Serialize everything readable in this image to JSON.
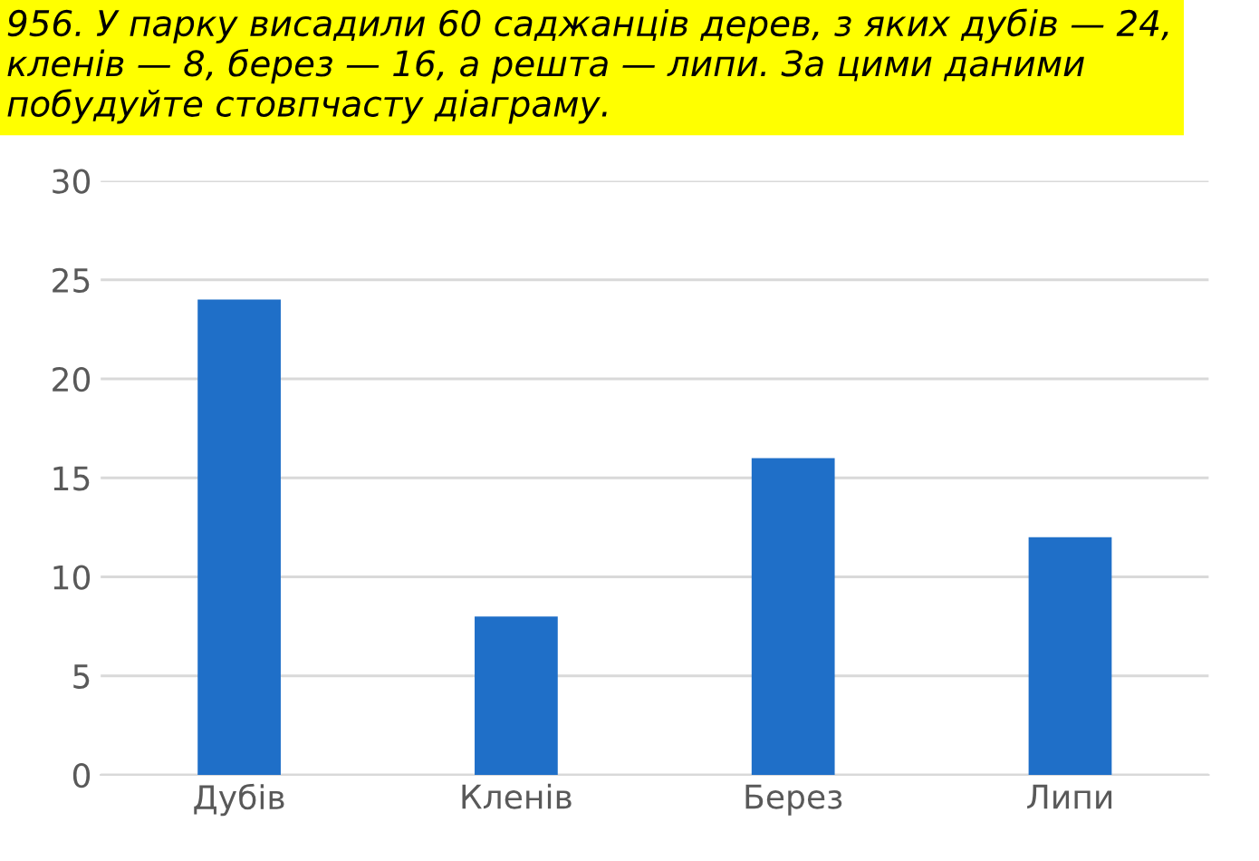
{
  "chart_data": {
    "type": "bar",
    "title": "956. У парку висадили 60 саджанців дерев, з яких дубів — 24, кленів — 8, берез — 16, а решта — липи. За цими даними побудуйте стовпчасту діаграму.",
    "categories": [
      "Дубів",
      "Кленів",
      "Берез",
      "Липи"
    ],
    "values": [
      24,
      8,
      16,
      12
    ],
    "color": "#1f6fc8",
    "ylim": [
      0,
      30
    ],
    "yticks": [
      0,
      5,
      10,
      15,
      20,
      25,
      30
    ],
    "grid": "y"
  }
}
